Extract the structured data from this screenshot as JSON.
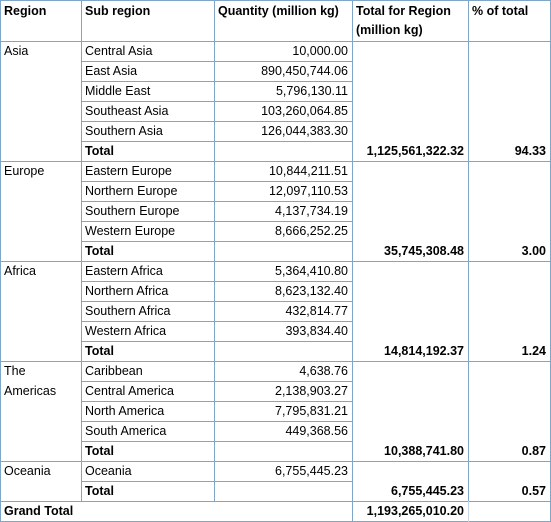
{
  "header": {
    "region": "Region",
    "subregion": "Sub region",
    "quantity": "Quantity (million kg)",
    "total_region": "Total for Region (million kg)",
    "pct_total": "% of total"
  },
  "groups": [
    {
      "region": "Asia",
      "rows": [
        {
          "sub": "Central Asia",
          "qty": "10,000.00"
        },
        {
          "sub": "East Asia",
          "qty": "890,450,744.06"
        },
        {
          "sub": "Middle East",
          "qty": "5,796,130.11"
        },
        {
          "sub": "Southeast Asia",
          "qty": "103,260,064.85"
        },
        {
          "sub": "Southern Asia",
          "qty": "126,044,383.30"
        }
      ],
      "total_label": "Total",
      "total": "1,125,561,322.32",
      "pct": "94.33"
    },
    {
      "region": "Europe",
      "rows": [
        {
          "sub": "Eastern Europe",
          "qty": "10,844,211.51"
        },
        {
          "sub": "Northern Europe",
          "qty": "12,097,110.53"
        },
        {
          "sub": "Southern Europe",
          "qty": "4,137,734.19"
        },
        {
          "sub": "Western Europe",
          "qty": "8,666,252.25"
        }
      ],
      "total_label": "Total",
      "total": "35,745,308.48",
      "pct": "3.00"
    },
    {
      "region": "Africa",
      "rows": [
        {
          "sub": "Eastern Africa",
          "qty": "5,364,410.80"
        },
        {
          "sub": "Northern Africa",
          "qty": "8,623,132.40"
        },
        {
          "sub": "Southern Africa",
          "qty": "432,814.77"
        },
        {
          "sub": "Western Africa",
          "qty": "393,834.40"
        }
      ],
      "total_label": "Total",
      "total": "14,814,192.37",
      "pct": "1.24"
    },
    {
      "region": "The Americas",
      "rows": [
        {
          "sub": "Caribbean",
          "qty": "4,638.76"
        },
        {
          "sub": "Central America",
          "qty": "2,138,903.27"
        },
        {
          "sub": "North America",
          "qty": "7,795,831.21"
        },
        {
          "sub": "South America",
          "qty": "449,368.56"
        }
      ],
      "total_label": "Total",
      "total": "10,388,741.80",
      "pct": "0.87"
    },
    {
      "region": "Oceania",
      "rows": [
        {
          "sub": "Oceania",
          "qty": "6,755,445.23"
        }
      ],
      "total_label": "Total",
      "total": "6,755,445.23",
      "pct": "0.57"
    }
  ],
  "grand_total": {
    "label": "Grand Total",
    "value": "1,193,265,010.20"
  }
}
